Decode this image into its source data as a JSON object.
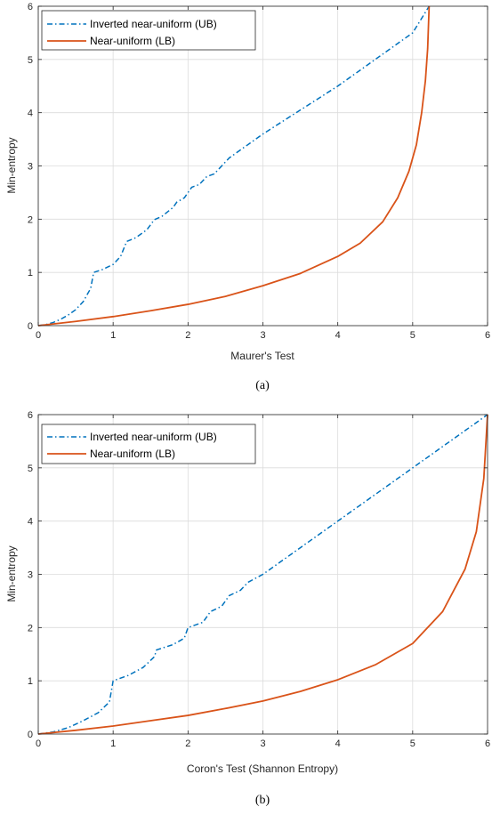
{
  "colors": {
    "ub": "#0072BD",
    "lb": "#D95319",
    "axis": "#262626",
    "grid": "#DCDCDC"
  },
  "chart_data": [
    {
      "type": "line",
      "caption": "(a)",
      "xlabel": "Maurer's Test",
      "ylabel": "Min-entropy",
      "xlim": [
        0,
        6
      ],
      "ylim": [
        0,
        6
      ],
      "xticks": [
        "0",
        "1",
        "2",
        "3",
        "4",
        "5",
        "6"
      ],
      "yticks": [
        "0",
        "1",
        "2",
        "3",
        "4",
        "5",
        "6"
      ],
      "grid": true,
      "legend_position": "top-left",
      "series": [
        {
          "name": "Inverted near-uniform (UB)",
          "style": "dash-dot",
          "points": [
            [
              0,
              0
            ],
            [
              0.1,
              0.02
            ],
            [
              0.2,
              0.06
            ],
            [
              0.3,
              0.12
            ],
            [
              0.4,
              0.2
            ],
            [
              0.5,
              0.3
            ],
            [
              0.6,
              0.45
            ],
            [
              0.7,
              0.7
            ],
            [
              0.74,
              1.0
            ],
            [
              0.85,
              1.05
            ],
            [
              1.0,
              1.15
            ],
            [
              1.1,
              1.3
            ],
            [
              1.18,
              1.58
            ],
            [
              1.3,
              1.65
            ],
            [
              1.45,
              1.8
            ],
            [
              1.55,
              1.99
            ],
            [
              1.65,
              2.05
            ],
            [
              1.8,
              2.22
            ],
            [
              1.85,
              2.32
            ],
            [
              1.95,
              2.4
            ],
            [
              2.05,
              2.6
            ],
            [
              2.15,
              2.65
            ],
            [
              2.25,
              2.8
            ],
            [
              2.35,
              2.85
            ],
            [
              2.45,
              3.0
            ],
            [
              2.55,
              3.15
            ],
            [
              2.65,
              3.25
            ],
            [
              3.0,
              3.6
            ],
            [
              3.5,
              4.05
            ],
            [
              4.0,
              4.5
            ],
            [
              4.5,
              5.0
            ],
            [
              5.0,
              5.5
            ],
            [
              5.22,
              6.0
            ]
          ]
        },
        {
          "name": "Near-uniform (LB)",
          "style": "solid",
          "points": [
            [
              0,
              0
            ],
            [
              0.5,
              0.08
            ],
            [
              1,
              0.17
            ],
            [
              1.5,
              0.28
            ],
            [
              2,
              0.4
            ],
            [
              2.5,
              0.55
            ],
            [
              3,
              0.75
            ],
            [
              3.5,
              0.98
            ],
            [
              4,
              1.3
            ],
            [
              4.3,
              1.55
            ],
            [
              4.6,
              1.95
            ],
            [
              4.8,
              2.4
            ],
            [
              4.95,
              2.9
            ],
            [
              5.05,
              3.4
            ],
            [
              5.12,
              4.0
            ],
            [
              5.17,
              4.6
            ],
            [
              5.2,
              5.2
            ],
            [
              5.22,
              6.0
            ]
          ]
        }
      ]
    },
    {
      "type": "line",
      "caption": "(b)",
      "xlabel": "Coron's Test (Shannon Entropy)",
      "ylabel": "Min-entropy",
      "xlim": [
        0,
        6
      ],
      "ylim": [
        0,
        6
      ],
      "xticks": [
        "0",
        "1",
        "2",
        "3",
        "4",
        "5",
        "6"
      ],
      "yticks": [
        "0",
        "1",
        "2",
        "3",
        "4",
        "5",
        "6"
      ],
      "grid": true,
      "legend_position": "top-left",
      "series": [
        {
          "name": "Inverted near-uniform (UB)",
          "style": "dash-dot",
          "points": [
            [
              0,
              0
            ],
            [
              0.2,
              0.04
            ],
            [
              0.4,
              0.12
            ],
            [
              0.6,
              0.25
            ],
            [
              0.8,
              0.4
            ],
            [
              0.95,
              0.6
            ],
            [
              1.0,
              1.0
            ],
            [
              1.2,
              1.1
            ],
            [
              1.4,
              1.25
            ],
            [
              1.55,
              1.45
            ],
            [
              1.58,
              1.58
            ],
            [
              1.8,
              1.68
            ],
            [
              1.95,
              1.8
            ],
            [
              2.0,
              2.0
            ],
            [
              2.2,
              2.1
            ],
            [
              2.3,
              2.3
            ],
            [
              2.45,
              2.4
            ],
            [
              2.55,
              2.6
            ],
            [
              2.7,
              2.7
            ],
            [
              2.8,
              2.85
            ],
            [
              3.0,
              3.0
            ],
            [
              3.5,
              3.5
            ],
            [
              4.0,
              4.0
            ],
            [
              4.5,
              4.5
            ],
            [
              5.0,
              5.0
            ],
            [
              5.5,
              5.5
            ],
            [
              6.0,
              6.0
            ]
          ]
        },
        {
          "name": "Near-uniform (LB)",
          "style": "solid",
          "points": [
            [
              0,
              0
            ],
            [
              0.5,
              0.07
            ],
            [
              1,
              0.15
            ],
            [
              1.5,
              0.25
            ],
            [
              2,
              0.35
            ],
            [
              2.5,
              0.48
            ],
            [
              3,
              0.62
            ],
            [
              3.5,
              0.8
            ],
            [
              4,
              1.02
            ],
            [
              4.5,
              1.3
            ],
            [
              5,
              1.7
            ],
            [
              5.4,
              2.3
            ],
            [
              5.7,
              3.1
            ],
            [
              5.85,
              3.8
            ],
            [
              5.95,
              4.8
            ],
            [
              6.0,
              6.0
            ]
          ]
        }
      ]
    }
  ]
}
